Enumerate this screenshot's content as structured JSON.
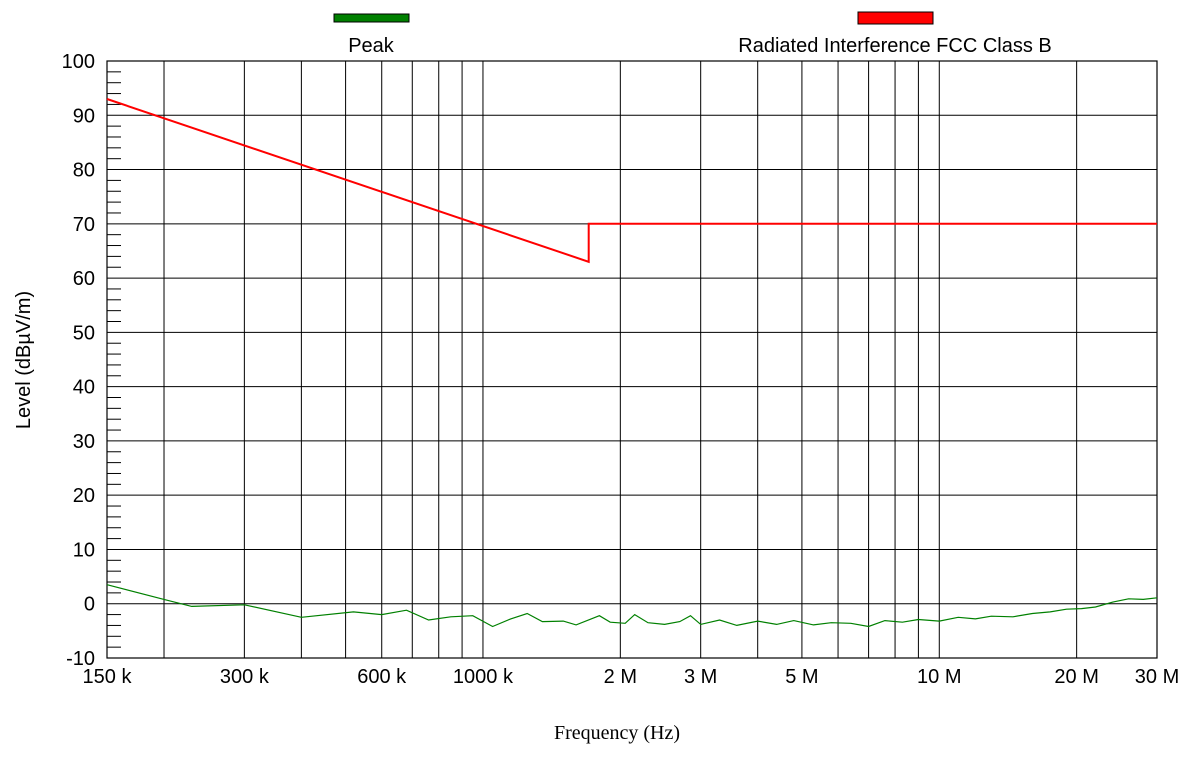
{
  "chart_data": {
    "type": "line",
    "xlabel": "Frequency (Hz)",
    "ylabel": "Level (dBµV/m)",
    "x_scale": "log",
    "xlim": [
      150000,
      30000000
    ],
    "ylim": [
      -10,
      100
    ],
    "grid": true,
    "legend_position": "top",
    "x_ticks": [
      {
        "value": 150000,
        "label": "150 k"
      },
      {
        "value": 300000,
        "label": "300 k"
      },
      {
        "value": 600000,
        "label": "600 k"
      },
      {
        "value": 1000000,
        "label": "1000 k"
      },
      {
        "value": 2000000,
        "label": "2 M"
      },
      {
        "value": 3000000,
        "label": "3 M"
      },
      {
        "value": 5000000,
        "label": "5 M"
      },
      {
        "value": 10000000,
        "label": "10 M"
      },
      {
        "value": 20000000,
        "label": "20 M"
      },
      {
        "value": 30000000,
        "label": "30 M"
      }
    ],
    "x_gridlines": [
      200000,
      300000,
      400000,
      500000,
      600000,
      700000,
      800000,
      900000,
      1000000,
      2000000,
      3000000,
      4000000,
      5000000,
      6000000,
      7000000,
      8000000,
      9000000,
      10000000,
      20000000,
      30000000
    ],
    "y_ticks": [
      -10,
      0,
      10,
      20,
      30,
      40,
      50,
      60,
      70,
      80,
      90,
      100
    ],
    "series": [
      {
        "name": "Peak",
        "color": "#008000",
        "points": [
          [
            150000,
            3.5
          ],
          [
            200000,
            0.8
          ],
          [
            230000,
            -0.5
          ],
          [
            300000,
            -0.2
          ],
          [
            400000,
            -2.5
          ],
          [
            520000,
            -1.5
          ],
          [
            600000,
            -2.0
          ],
          [
            680000,
            -1.2
          ],
          [
            760000,
            -3.0
          ],
          [
            850000,
            -2.4
          ],
          [
            950000,
            -2.2
          ],
          [
            1050000,
            -4.2
          ],
          [
            1150000,
            -2.8
          ],
          [
            1250000,
            -1.8
          ],
          [
            1350000,
            -3.3
          ],
          [
            1500000,
            -3.2
          ],
          [
            1600000,
            -3.9
          ],
          [
            1800000,
            -2.2
          ],
          [
            1900000,
            -3.4
          ],
          [
            2050000,
            -3.6
          ],
          [
            2150000,
            -2.0
          ],
          [
            2300000,
            -3.5
          ],
          [
            2500000,
            -3.8
          ],
          [
            2700000,
            -3.3
          ],
          [
            2850000,
            -2.2
          ],
          [
            3000000,
            -3.8
          ],
          [
            3300000,
            -3.0
          ],
          [
            3600000,
            -4.0
          ],
          [
            4000000,
            -3.2
          ],
          [
            4400000,
            -3.8
          ],
          [
            4800000,
            -3.1
          ],
          [
            5300000,
            -3.9
          ],
          [
            5800000,
            -3.5
          ],
          [
            6400000,
            -3.6
          ],
          [
            7000000,
            -4.2
          ],
          [
            7600000,
            -3.1
          ],
          [
            8300000,
            -3.4
          ],
          [
            9000000,
            -2.9
          ],
          [
            10000000,
            -3.2
          ],
          [
            11000000,
            -2.5
          ],
          [
            12000000,
            -2.8
          ],
          [
            13000000,
            -2.3
          ],
          [
            14500000,
            -2.4
          ],
          [
            16000000,
            -1.8
          ],
          [
            17500000,
            -1.5
          ],
          [
            19000000,
            -1.0
          ],
          [
            20500000,
            -0.9
          ],
          [
            22000000,
            -0.6
          ],
          [
            24000000,
            0.3
          ],
          [
            26000000,
            0.9
          ],
          [
            28000000,
            0.8
          ],
          [
            30000000,
            1.1
          ]
        ]
      },
      {
        "name": "Radiated Interference FCC Class B",
        "color": "#ff0000",
        "points": [
          [
            150000,
            93
          ],
          [
            1705000,
            63
          ],
          [
            1705000,
            70
          ],
          [
            30000000,
            70
          ]
        ]
      }
    ]
  }
}
